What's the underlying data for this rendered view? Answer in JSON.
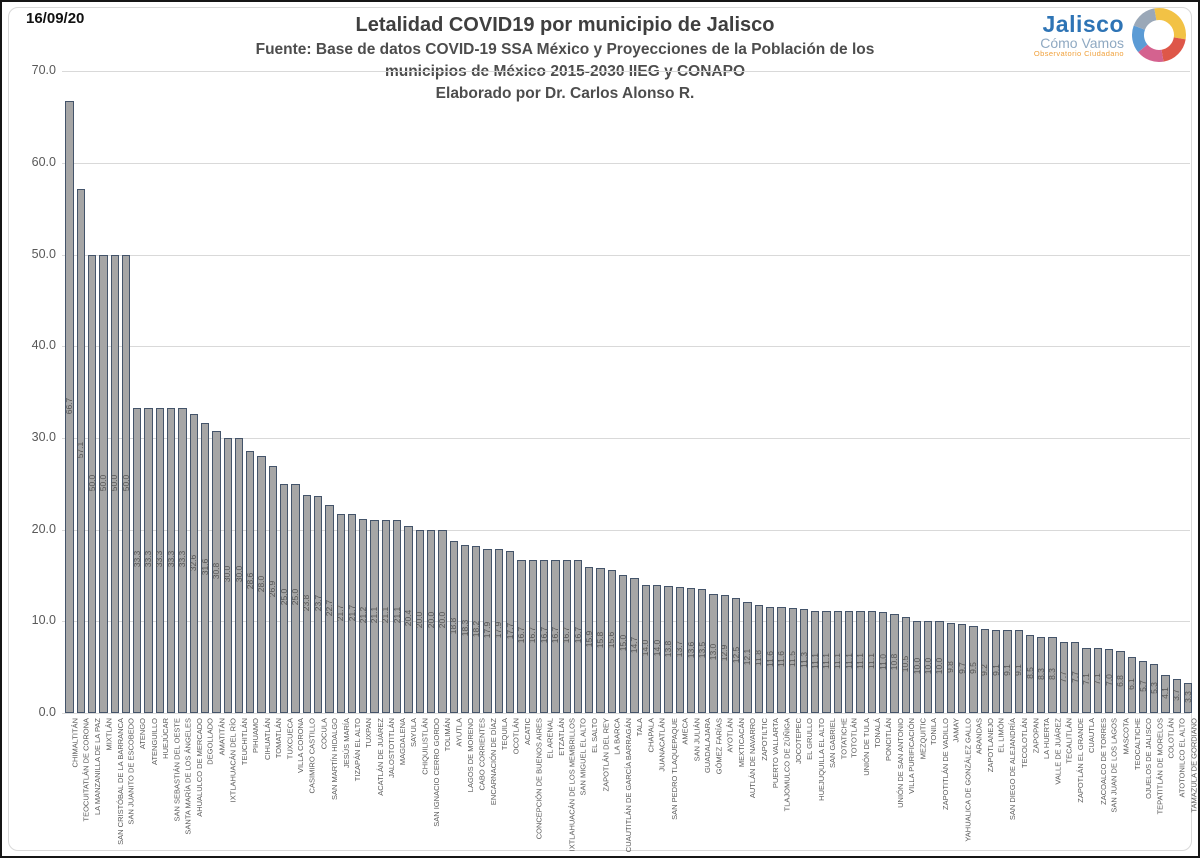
{
  "meta": {
    "date": "16/09/20"
  },
  "header": {
    "title": "Letalidad COVID19 por municipio de Jalisco",
    "source_line1": "Fuente: Base de datos COVID-19 SSA México y Proyecciones de la Población de los",
    "source_line2": "municipios de México 2015-2030 IIEG y CONAPO",
    "source_line3": "Elaborado por Dr. Carlos Alonso R."
  },
  "logo": {
    "name": "Jalisco",
    "subtitle": "Cómo Vamos",
    "tagline": "Observatorio Ciudadano",
    "name_color": "#2e74b5",
    "subtitle_color": "#8fa9c2",
    "tagline_color": "#f0a13c",
    "ring_colors": [
      "#f2c245",
      "#de5749",
      "#d4628f",
      "#5b9bd5",
      "#9aa8b8"
    ]
  },
  "chart_data": {
    "type": "bar",
    "title": "Letalidad COVID19 por municipio de Jalisco",
    "xlabel": "",
    "ylabel": "",
    "ylim": [
      0,
      70
    ],
    "yticks": [
      0,
      10,
      20,
      30,
      40,
      50,
      60,
      70
    ],
    "ytick_labels": [
      "0.0",
      "10.0",
      "20.0",
      "30.0",
      "40.0",
      "50.0",
      "60.0",
      "70.0"
    ],
    "grid": true,
    "legend": false,
    "bar_fill": "#a6a6a6",
    "bar_border": "#44546a",
    "value_label_color": "#555555",
    "categories": [
      "CHIMALTITÁN",
      "TEOCUITATLÁN DE CORONA",
      "LA MANZANILLA DE LA PAZ",
      "MIXTLÁN",
      "SAN CRISTÓBAL DE LA BARRANCA",
      "SAN JUANITO DE ESCOBEDO",
      "ATENGO",
      "ATENGUILLO",
      "HUEJÚCAR",
      "SAN SEBASTIÁN DEL OESTE",
      "SANTA MARÍA DE LOS ÁNGELES",
      "AHUALULCO DE MERCADO",
      "DEGOLLADO",
      "AMATITÁN",
      "IXTLAHUACÁN DEL RÍO",
      "TEUCHITLÁN",
      "PIHUAMO",
      "CIHUATLÁN",
      "TOMATLÁN",
      "TUXCUECA",
      "VILLA CORONA",
      "CASIMIRO CASTILLO",
      "COCULA",
      "SAN MARTÍN HIDALGO",
      "JESÚS MARÍA",
      "TIZAPÁN EL ALTO",
      "TUXPAN",
      "ACATLÁN DE JUÁREZ",
      "JALOSTOTITLÁN",
      "MAGDALENA",
      "SAYULA",
      "CHIQUILISTLÁN",
      "SAN IGNACIO CERRO GORDO",
      "TOLIMÁN",
      "AYUTLA",
      "LAGOS DE MORENO",
      "CABO CORRIENTES",
      "ENCARNACIÓN DE DÍAZ",
      "TEQUILA",
      "OCOTLÁN",
      "ACATIC",
      "CONCEPCIÓN DE BUENOS AIRES",
      "EL ARENAL",
      "ETZATLÁN",
      "IXTLAHUACÁN DE LOS MEMBRILLOS",
      "SAN MIGUEL EL ALTO",
      "EL SALTO",
      "ZAPOTLÁN DEL REY",
      "LA BARCA",
      "CUAUTITLÁN DE GARCÍA BARRAGÁN",
      "TALA",
      "CHAPALA",
      "JUANACATLÁN",
      "SAN PEDRO TLAQUEPAQUE",
      "AMECA",
      "SAN JULIÁN",
      "GUADALAJARA",
      "GÓMEZ FARÍAS",
      "AYOTLÁN",
      "MEXTICACÁN",
      "AUTLÁN DE NAVARRO",
      "ZAPOTILTIC",
      "PUERTO VALLARTA",
      "TLAJOMULCO DE ZÚÑIGA",
      "JOCOTEPEC",
      "EL GRULLO",
      "HUEJUQUILLA EL ALTO",
      "SAN GABRIEL",
      "TOTATICHE",
      "TOTOTLÁN",
      "UNIÓN DE TULA",
      "TONALÁ",
      "PONCITLÁN",
      "UNIÓN DE SAN ANTONIO",
      "VILLA PURIFICACIÓN",
      "MEZQUITIC",
      "TONILA",
      "ZAPOTITLÁN DE VADILLO",
      "JAMAY",
      "YAHUALICA DE GONZÁLEZ GALLO",
      "ARANDAS",
      "ZAPOTLANEJO",
      "EL LIMÓN",
      "SAN DIEGO DE ALEJANDRÍA",
      "TECOLOTLÁN",
      "ZAPOPAN",
      "LA HUERTA",
      "VALLE DE JUÁREZ",
      "TECALITLÁN",
      "ZAPOTLÁN EL GRANDE",
      "CUAUTLA",
      "ZACOALCO DE TORRES",
      "SAN JUAN DE LOS LAGOS",
      "MASCOTA",
      "TEOCALTICHE",
      "OJUELOS DE JALISCO",
      "TEPATITLÁN DE MORELOS",
      "COLOTLÁN",
      "ATOTONILCO EL ALTO",
      "TAMAZULA DE GORDIANO"
    ],
    "values": [
      66.7,
      57.1,
      50.0,
      50.0,
      50.0,
      50.0,
      33.3,
      33.3,
      33.3,
      33.3,
      33.3,
      32.6,
      31.6,
      30.8,
      30.0,
      30.0,
      28.6,
      28.0,
      26.9,
      25.0,
      25.0,
      23.8,
      23.7,
      22.7,
      21.7,
      21.7,
      21.2,
      21.1,
      21.1,
      21.1,
      20.4,
      20.0,
      20.0,
      20.0,
      18.8,
      18.3,
      18.2,
      17.9,
      17.9,
      17.7,
      16.7,
      16.7,
      16.7,
      16.7,
      16.7,
      16.7,
      15.9,
      15.8,
      15.6,
      15.0,
      14.7,
      14.0,
      14.0,
      13.8,
      13.7,
      13.6,
      13.5,
      13.0,
      12.9,
      12.5,
      12.1,
      11.8,
      11.6,
      11.6,
      11.5,
      11.3,
      11.1,
      11.1,
      11.1,
      11.1,
      11.1,
      11.1,
      11.0,
      10.8,
      10.5,
      10.0,
      10.0,
      10.0,
      9.8,
      9.7,
      9.5,
      9.2,
      9.1,
      9.1,
      9.1,
      8.5,
      8.3,
      8.3,
      7.7,
      7.7,
      7.1,
      7.1,
      7.0,
      6.8,
      6.1,
      5.7,
      5.3,
      4.1,
      3.7,
      3.3
    ]
  }
}
